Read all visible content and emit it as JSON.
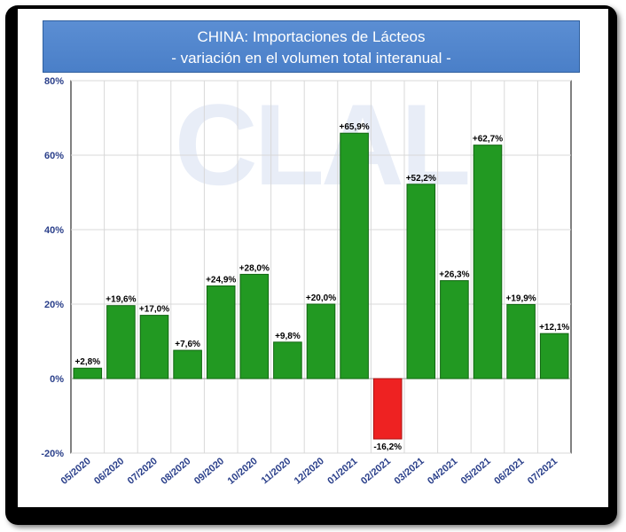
{
  "header": {
    "title": "CHINA: Importaciones de Lácteos",
    "subtitle": "- variación en el volumen total interanual -"
  },
  "watermark": "CLAL",
  "colors": {
    "positive": "#229922",
    "negative": "#ee2222",
    "title_bg": "#4f84cc",
    "axis_text": "#2a3f8a"
  },
  "chart_data": {
    "type": "bar",
    "categories": [
      "05/2020",
      "06/2020",
      "07/2020",
      "08/2020",
      "09/2020",
      "10/2020",
      "11/2020",
      "12/2020",
      "01/2021",
      "02/2021",
      "03/2021",
      "04/2021",
      "05/2021",
      "06/2021",
      "07/2021"
    ],
    "values": [
      2.8,
      19.6,
      17.0,
      7.6,
      24.9,
      28.0,
      9.8,
      20.0,
      65.9,
      -16.2,
      52.2,
      26.3,
      62.7,
      19.9,
      12.1
    ],
    "data_labels": [
      "+2,8%",
      "+19,6%",
      "+17,0%",
      "+7,6%",
      "+24,9%",
      "+28,0%",
      "+9,8%",
      "+20,0%",
      "+65,9%",
      "-16,2%",
      "+52,2%",
      "+26,3%",
      "+62,7%",
      "+19,9%",
      "+12,1%"
    ],
    "ylim": [
      -20,
      80
    ],
    "yticks": [
      -20,
      0,
      20,
      40,
      60,
      80
    ],
    "ytick_labels": [
      "-20%",
      "0%",
      "20%",
      "40%",
      "60%",
      "80%"
    ],
    "grid": true,
    "xlabel": "",
    "ylabel": ""
  }
}
